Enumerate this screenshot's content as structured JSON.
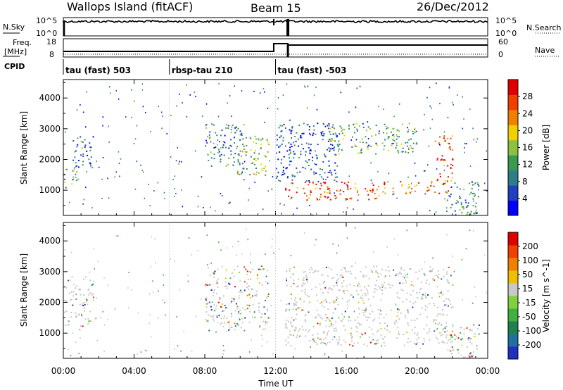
{
  "header": {
    "title": "Wallops Island (fitACF)",
    "beam": "Beam 15",
    "date": "26/Dec/2012"
  },
  "top_panels": {
    "nsky_label": "N.Sky",
    "nsky_ticks": [
      "10^5",
      "10^0"
    ],
    "nsearch_ticks": [
      "10^5",
      "10^0"
    ],
    "nsearch_label": "N.Search",
    "freq_label": "Freq.",
    "freq_unit": "[MHz]",
    "freq_ticks": [
      "18",
      "8"
    ],
    "nave_ticks": [
      "60",
      "0"
    ],
    "nave_label": "Nave",
    "cpid_label": "CPID"
  },
  "cpid_segments": [
    {
      "label": "tau (fast) 503",
      "start_h": 0,
      "end_h": 6
    },
    {
      "label": "rbsp-tau 210",
      "start_h": 6,
      "end_h": 12
    },
    {
      "label": "tau (fast) -503",
      "start_h": 12,
      "end_h": 24
    }
  ],
  "chart_data": [
    {
      "type": "heatmap",
      "title": "Power",
      "xlabel": "Time UT",
      "ylabel": "Slant Range [km]",
      "x_ticks": [
        "00:00",
        "04:00",
        "08:00",
        "12:00",
        "16:00",
        "20:00",
        "00:00"
      ],
      "xlim_hours": [
        0,
        24
      ],
      "ylim": [
        180,
        4600
      ],
      "y_ticks": [
        1000,
        2000,
        3000,
        4000
      ],
      "colorbar": {
        "label": "Power [dB]",
        "ticks": [
          "4",
          "8",
          "12",
          "16",
          "20",
          "24",
          "28"
        ],
        "colors": [
          "#0000ff",
          "#2040c0",
          "#2e7d8a",
          "#3c9a50",
          "#8cc040",
          "#f0d000",
          "#f08000",
          "#f04000",
          "#e00000"
        ]
      },
      "features": [
        {
          "t": [
            0.0,
            1.0
          ],
          "r": [
            1200,
            1700
          ],
          "level": 0.45
        },
        {
          "t": [
            0.5,
            1.7
          ],
          "r": [
            1700,
            2800
          ],
          "level": 0.25
        },
        {
          "t": [
            8.0,
            10.2
          ],
          "r": [
            1800,
            3200
          ],
          "level": 0.3
        },
        {
          "t": [
            9.8,
            11.6
          ],
          "r": [
            1500,
            2800
          ],
          "level": 0.5
        },
        {
          "t": [
            12.5,
            18.0
          ],
          "r": [
            700,
            1300
          ],
          "level": 0.85
        },
        {
          "t": [
            18.0,
            21.8
          ],
          "r": [
            900,
            1300
          ],
          "level": 0.75
        },
        {
          "t": [
            15.0,
            20.0
          ],
          "r": [
            2200,
            3200
          ],
          "level": 0.4
        },
        {
          "t": [
            12.0,
            15.5
          ],
          "r": [
            1300,
            3200
          ],
          "level": 0.2
        },
        {
          "t": [
            21.0,
            22.0
          ],
          "r": [
            1200,
            2800
          ],
          "level": 0.8
        },
        {
          "t": [
            21.5,
            23.5
          ],
          "r": [
            200,
            1300
          ],
          "level": 0.3
        }
      ]
    },
    {
      "type": "heatmap",
      "title": "Velocity",
      "xlabel": "Time UT",
      "ylabel": "Slant Range [km]",
      "x_ticks": [
        "00:00",
        "04:00",
        "08:00",
        "12:00",
        "16:00",
        "20:00",
        "00:00"
      ],
      "xlim_hours": [
        0,
        24
      ],
      "ylim": [
        180,
        4600
      ],
      "y_ticks": [
        1000,
        2000,
        3000,
        4000
      ],
      "colorbar": {
        "label": "Velocity [m s^-1]",
        "ticks": [
          "200",
          "100",
          "50",
          "15",
          "-15",
          "-50",
          "-100",
          "-200"
        ],
        "colors": [
          "#2030c0",
          "#2070a0",
          "#208050",
          "#40b040",
          "#80d040",
          "#c8c8c8",
          "#f0c000",
          "#f08000",
          "#f04000",
          "#e00000"
        ]
      },
      "features": [
        {
          "t": [
            0.0,
            1.7
          ],
          "r": [
            1200,
            2900
          ],
          "level": "ground"
        },
        {
          "t": [
            8.0,
            11.6
          ],
          "r": [
            1100,
            3200
          ],
          "level": "mixed"
        },
        {
          "t": [
            12.5,
            22.0
          ],
          "r": [
            600,
            3200
          ],
          "level": "ground"
        },
        {
          "t": [
            21.5,
            23.5
          ],
          "r": [
            200,
            1300
          ],
          "level": "mixed"
        }
      ]
    }
  ]
}
